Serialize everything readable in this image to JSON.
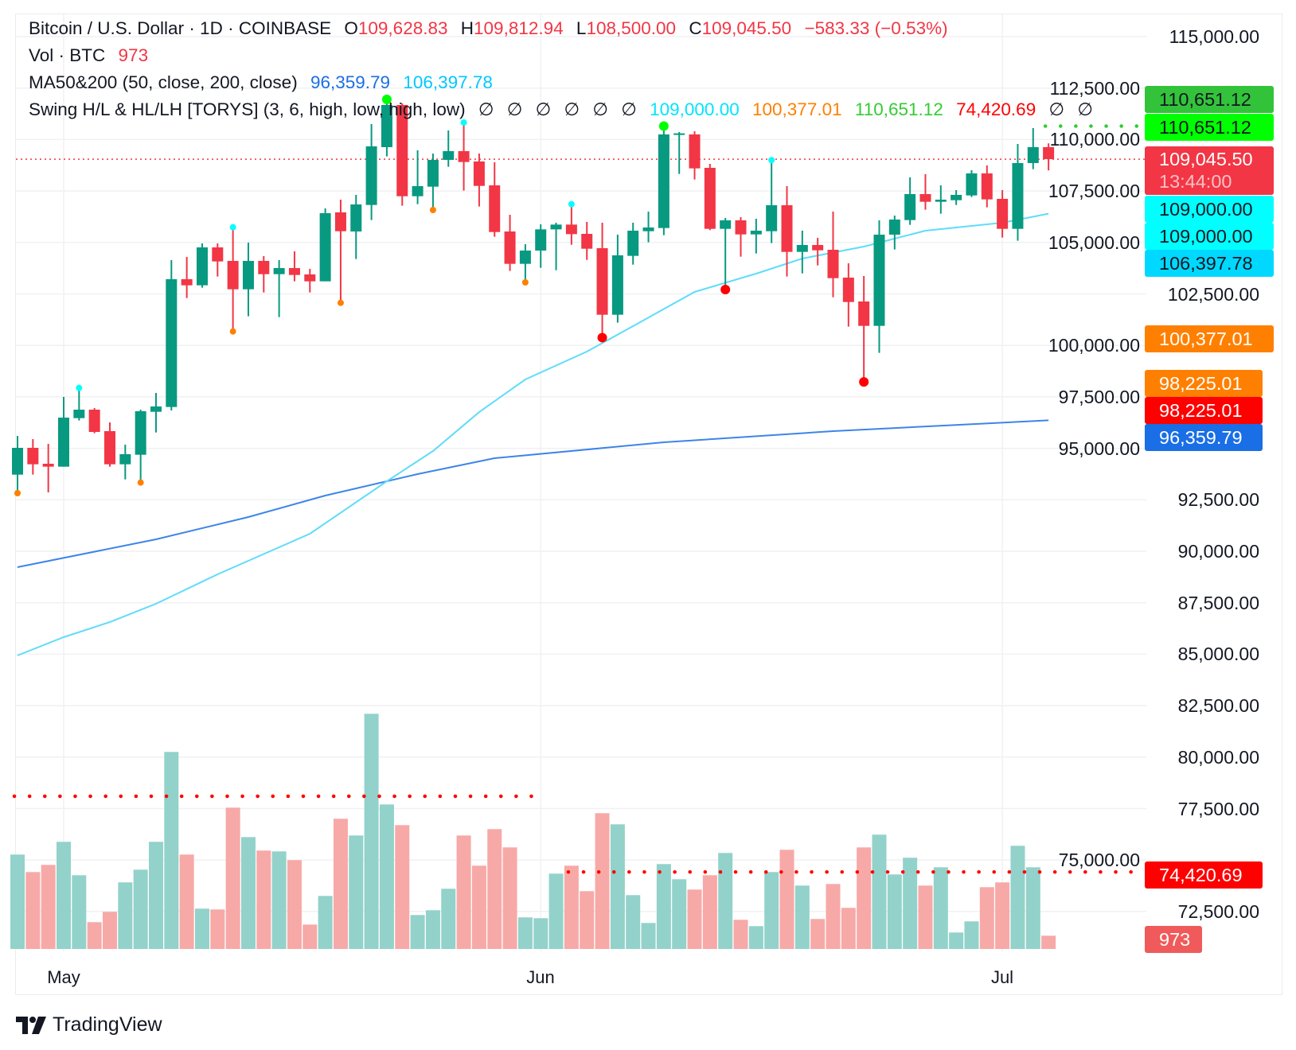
{
  "legend": {
    "symbol": "Bitcoin / U.S. Dollar · 1D · COINBASE",
    "o_label": "O",
    "o_value": "109,628.83",
    "h_label": "H",
    "h_value": "109,812.94",
    "l_label": "L",
    "l_value": "108,500.00",
    "c_label": "C",
    "c_value": "109,045.50",
    "change": "−583.33 (−0.53%)",
    "vol_label": "Vol · BTC",
    "vol_value": "973",
    "ma_label": "MA50&200 (50, close, 200, close)",
    "ma200_value": "96,359.79",
    "ma50_value": "106,397.78",
    "swing_label": "Swing H/L & HL/LH [TORYS] (3, 6, high, low, high, low)",
    "swing_empty": [
      "∅",
      "∅",
      "∅",
      "∅",
      "∅",
      "∅"
    ],
    "swing_values": [
      "109,000.00",
      "100,377.01",
      "110,651.12",
      "74,420.69"
    ],
    "swing_empty_tail": [
      "∅",
      "∅"
    ]
  },
  "price_axis": {
    "ticks": [
      "115,000.00",
      "112,500.00",
      "110,000.00",
      "107,500.00",
      "105,000.00",
      "102,500.00",
      "100,000.00",
      "97,500.00",
      "95,000.00",
      "92,500.00",
      "90,000.00",
      "87,500.00",
      "85,000.00",
      "82,500.00",
      "80,000.00",
      "77,500.00",
      "75,000.00",
      "72,500.00"
    ],
    "tags": [
      {
        "text": "110,651.12",
        "bg": "#33c33a",
        "fg": "#131722"
      },
      {
        "text": "110,651.12",
        "bg": "#00ff00",
        "fg": "#131722"
      },
      {
        "text": "109,045.50",
        "sub": "13:44:00",
        "bg": "#f23645",
        "fg": "#ffffff"
      },
      {
        "text": "109,000.00",
        "bg": "#00ffff",
        "fg": "#131722"
      },
      {
        "text": "109,000.00",
        "bg": "#00ffff",
        "fg": "#131722"
      },
      {
        "text": "106,397.78",
        "bg": "#00d8ff",
        "fg": "#131722"
      },
      {
        "text": "100,377.01",
        "bg": "#ff8000",
        "fg": "#ffffff"
      },
      {
        "text": "98,225.01",
        "bg": "#ff8000",
        "fg": "#ffffff"
      },
      {
        "text": "98,225.01",
        "bg": "#ff0000",
        "fg": "#ffffff"
      },
      {
        "text": "96,359.79",
        "bg": "#1a6ee6",
        "fg": "#ffffff"
      },
      {
        "text": "74,420.69",
        "bg": "#ff0000",
        "fg": "#ffffff"
      },
      {
        "text": "973",
        "bg": "#f05a5a",
        "fg": "#ffffff"
      }
    ]
  },
  "time_axis": {
    "labels": [
      {
        "text": "May",
        "date": "May 1"
      },
      {
        "text": "Jun",
        "date": "Jun 1"
      },
      {
        "text": "Jul",
        "date": "Jul 1"
      }
    ]
  },
  "brand": {
    "name": "TradingView"
  },
  "colors": {
    "up": "#089981",
    "down": "#f23645",
    "vol_up": "#92d2ca",
    "vol_down": "#f7a9a7",
    "ma50": "#5fdcfa",
    "ma200": "#3d85e8",
    "last_price": "#f23645",
    "swing_high": "#00ffff",
    "swing_higher_high": "#00ff00",
    "swing_low": "#ff8000",
    "swing_lower_low": "#ff0000",
    "level_red": "#ff0000",
    "level_green": "#33cc33"
  },
  "chart_data": {
    "type": "candlestick",
    "title": "Bitcoin / U.S. Dollar · 1D · COINBASE",
    "ylim": [
      71500,
      116500
    ],
    "grid": true,
    "last_price": 109045.5,
    "candles": [
      {
        "d": "Apr 28",
        "o": 93721,
        "h": 95603,
        "l": 92821,
        "c": 95023,
        "v": 6920
      },
      {
        "d": "Apr 29",
        "o": 95023,
        "h": 95448,
        "l": 93722,
        "c": 94225,
        "v": 5638
      },
      {
        "d": "Apr 30",
        "o": 94251,
        "h": 95216,
        "l": 92860,
        "c": 94109,
        "v": 6162
      },
      {
        "d": "May 1",
        "o": 94109,
        "h": 97496,
        "l": 94109,
        "c": 96492,
        "v": 7853
      },
      {
        "d": "May 2",
        "o": 96466,
        "h": 97934,
        "l": 96350,
        "c": 96878,
        "v": 5404
      },
      {
        "d": "May 3",
        "o": 96878,
        "h": 96955,
        "l": 95732,
        "c": 95796,
        "v": 1965
      },
      {
        "d": "May 4",
        "o": 95835,
        "h": 96260,
        "l": 94109,
        "c": 94225,
        "v": 2723
      },
      {
        "d": "May 5",
        "o": 94225,
        "h": 95178,
        "l": 93490,
        "c": 94714,
        "v": 4880
      },
      {
        "d": "May 6",
        "o": 94688,
        "h": 96878,
        "l": 93336,
        "c": 96801,
        "v": 5813
      },
      {
        "d": "May 7",
        "o": 96775,
        "h": 97690,
        "l": 95770,
        "c": 97033,
        "v": 7853
      },
      {
        "d": "May 8",
        "o": 97007,
        "h": 104143,
        "l": 96840,
        "c": 103215,
        "v": 14441
      },
      {
        "d": "May 9",
        "o": 103215,
        "h": 104297,
        "l": 102301,
        "c": 102919,
        "v": 6920
      },
      {
        "d": "May 10",
        "o": 102919,
        "h": 104954,
        "l": 102803,
        "c": 104761,
        "v": 2956
      },
      {
        "d": "May 11",
        "o": 104761,
        "h": 104954,
        "l": 103344,
        "c": 104078,
        "v": 2898
      },
      {
        "d": "May 12",
        "o": 104104,
        "h": 105739,
        "l": 100678,
        "c": 102726,
        "v": 10360
      },
      {
        "d": "May 13",
        "o": 102726,
        "h": 104993,
        "l": 101412,
        "c": 104104,
        "v": 8203
      },
      {
        "d": "May 14",
        "o": 104104,
        "h": 104336,
        "l": 102571,
        "c": 103460,
        "v": 7212
      },
      {
        "d": "May 15",
        "o": 103460,
        "h": 104143,
        "l": 101373,
        "c": 103756,
        "v": 7153
      },
      {
        "d": "May 16",
        "o": 103756,
        "h": 104567,
        "l": 103112,
        "c": 103421,
        "v": 6512
      },
      {
        "d": "May 17",
        "o": 103447,
        "h": 103717,
        "l": 102571,
        "c": 103112,
        "v": 1790
      },
      {
        "d": "May 18",
        "o": 103112,
        "h": 106654,
        "l": 103112,
        "c": 106422,
        "v": 3889
      },
      {
        "d": "May 19",
        "o": 106461,
        "h": 107079,
        "l": 102069,
        "c": 105546,
        "v": 9544
      },
      {
        "d": "May 20",
        "o": 105533,
        "h": 107311,
        "l": 104194,
        "c": 106847,
        "v": 8319
      },
      {
        "d": "May 21",
        "o": 106821,
        "h": 110750,
        "l": 106087,
        "c": 109668,
        "v": 17239
      },
      {
        "d": "May 22",
        "o": 109629,
        "h": 111947,
        "l": 109178,
        "c": 111677,
        "v": 10593
      },
      {
        "d": "May 23",
        "o": 111677,
        "h": 111754,
        "l": 106783,
        "c": 107246,
        "v": 9077
      },
      {
        "d": "May 24",
        "o": 107246,
        "h": 109475,
        "l": 106860,
        "c": 107736,
        "v": 2489
      },
      {
        "d": "May 25",
        "o": 107710,
        "h": 109320,
        "l": 106577,
        "c": 109011,
        "v": 2839
      },
      {
        "d": "May 26",
        "o": 109011,
        "h": 110440,
        "l": 108676,
        "c": 109436,
        "v": 4413
      },
      {
        "d": "May 27",
        "o": 109436,
        "h": 110827,
        "l": 107517,
        "c": 108908,
        "v": 8319
      },
      {
        "d": "May 28",
        "o": 108934,
        "h": 109320,
        "l": 106744,
        "c": 107748,
        "v": 6104
      },
      {
        "d": "May 29",
        "o": 107774,
        "h": 108895,
        "l": 105275,
        "c": 105507,
        "v": 8786
      },
      {
        "d": "May 30",
        "o": 105533,
        "h": 106345,
        "l": 103614,
        "c": 103962,
        "v": 7445
      },
      {
        "d": "May 31",
        "o": 103962,
        "h": 104915,
        "l": 103060,
        "c": 104606,
        "v": 2315
      },
      {
        "d": "Jun 1",
        "o": 104606,
        "h": 105881,
        "l": 103768,
        "c": 105636,
        "v": 2256
      },
      {
        "d": "Jun 2",
        "o": 105636,
        "h": 105958,
        "l": 103653,
        "c": 105868,
        "v": 5521
      },
      {
        "d": "Jun 3",
        "o": 105868,
        "h": 106860,
        "l": 104889,
        "c": 105404,
        "v": 6104
      },
      {
        "d": "Jun 4",
        "o": 105417,
        "h": 105997,
        "l": 104155,
        "c": 104696,
        "v": 4238
      },
      {
        "d": "Jun 5",
        "o": 104722,
        "h": 105958,
        "l": 100377,
        "c": 101489,
        "v": 9952
      },
      {
        "d": "Jun 6",
        "o": 101489,
        "h": 105379,
        "l": 101103,
        "c": 104374,
        "v": 9136
      },
      {
        "d": "Jun 7",
        "o": 104349,
        "h": 105958,
        "l": 103923,
        "c": 105572,
        "v": 3947
      },
      {
        "d": "Jun 8",
        "o": 105546,
        "h": 106499,
        "l": 105005,
        "c": 105727,
        "v": 1906
      },
      {
        "d": "Jun 9",
        "o": 105701,
        "h": 110651,
        "l": 105353,
        "c": 110248,
        "v": 6221
      },
      {
        "d": "Jun 10",
        "o": 110248,
        "h": 110363,
        "l": 108328,
        "c": 110300,
        "v": 5113
      },
      {
        "d": "Jun 11",
        "o": 110248,
        "h": 110402,
        "l": 108058,
        "c": 108599,
        "v": 4355
      },
      {
        "d": "Jun 12",
        "o": 108625,
        "h": 108818,
        "l": 105600,
        "c": 105662,
        "v": 5404
      },
      {
        "d": "Jun 13",
        "o": 105662,
        "h": 106190,
        "l": 102713,
        "c": 106074,
        "v": 7037
      },
      {
        "d": "Jun 14",
        "o": 106074,
        "h": 106229,
        "l": 104310,
        "c": 105392,
        "v": 2140
      },
      {
        "d": "Jun 15",
        "o": 105392,
        "h": 106152,
        "l": 104464,
        "c": 105572,
        "v": 1673
      },
      {
        "d": "Jun 16",
        "o": 105546,
        "h": 109000,
        "l": 104967,
        "c": 106808,
        "v": 5638
      },
      {
        "d": "Jun 17",
        "o": 106808,
        "h": 107736,
        "l": 103344,
        "c": 104542,
        "v": 7270
      },
      {
        "d": "Jun 18",
        "o": 104542,
        "h": 105572,
        "l": 103498,
        "c": 104877,
        "v": 4647
      },
      {
        "d": "Jun 19",
        "o": 104877,
        "h": 105224,
        "l": 103884,
        "c": 104619,
        "v": 2198
      },
      {
        "d": "Jun 20",
        "o": 104645,
        "h": 106499,
        "l": 102339,
        "c": 103266,
        "v": 4763
      },
      {
        "d": "Jun 21",
        "o": 103292,
        "h": 103988,
        "l": 100910,
        "c": 102107,
        "v": 3014
      },
      {
        "d": "Jun 22",
        "o": 102133,
        "h": 103370,
        "l": 98225,
        "c": 100948,
        "v": 7445
      },
      {
        "d": "Jun 23",
        "o": 100948,
        "h": 106074,
        "l": 99634,
        "c": 105379,
        "v": 8378
      },
      {
        "d": "Jun 24",
        "o": 105379,
        "h": 106306,
        "l": 104658,
        "c": 106113,
        "v": 5463
      },
      {
        "d": "Jun 25",
        "o": 106087,
        "h": 108161,
        "l": 105855,
        "c": 107350,
        "v": 6687
      },
      {
        "d": "Jun 26",
        "o": 107350,
        "h": 108315,
        "l": 106590,
        "c": 106976,
        "v": 4647
      },
      {
        "d": "Jun 27",
        "o": 106976,
        "h": 107774,
        "l": 106397,
        "c": 107079,
        "v": 5987
      },
      {
        "d": "Jun 28",
        "o": 107053,
        "h": 107543,
        "l": 106822,
        "c": 107311,
        "v": 1207
      },
      {
        "d": "Jun 29",
        "o": 107285,
        "h": 108508,
        "l": 107208,
        "c": 108354,
        "v": 2023
      },
      {
        "d": "Jun 30",
        "o": 108354,
        "h": 108740,
        "l": 106706,
        "c": 107092,
        "v": 4530
      },
      {
        "d": "Jul 1",
        "o": 107118,
        "h": 107543,
        "l": 105237,
        "c": 105662,
        "v": 4880
      },
      {
        "d": "Jul 2",
        "o": 105662,
        "h": 109784,
        "l": 105083,
        "c": 108856,
        "v": 7562
      },
      {
        "d": "Jul 3",
        "o": 108856,
        "h": 110557,
        "l": 108560,
        "c": 109629,
        "v": 5987
      },
      {
        "d": "Jul 4",
        "o": 109628.83,
        "h": 109812.94,
        "l": 108500.0,
        "c": 109045.5,
        "v": 973
      }
    ],
    "ma50": [
      {
        "d": "Apr 28",
        "v": 84938
      },
      {
        "d": "May 1",
        "v": 85827
      },
      {
        "d": "May 4",
        "v": 86561
      },
      {
        "d": "May 7",
        "v": 87450
      },
      {
        "d": "May 11",
        "v": 88880
      },
      {
        "d": "May 17",
        "v": 90850
      },
      {
        "d": "May 22",
        "v": 93400
      },
      {
        "d": "May 25",
        "v": 94868
      },
      {
        "d": "May 28",
        "v": 96760
      },
      {
        "d": "May 31",
        "v": 98346
      },
      {
        "d": "Jun 4",
        "v": 99699
      },
      {
        "d": "Jun 7",
        "v": 100935
      },
      {
        "d": "Jun 11",
        "v": 102597
      },
      {
        "d": "Jun 15",
        "v": 103485
      },
      {
        "d": "Jun 18",
        "v": 104219
      },
      {
        "d": "Jun 22",
        "v": 104799
      },
      {
        "d": "Jun 26",
        "v": 105572
      },
      {
        "d": "Jul 1",
        "v": 105958
      },
      {
        "d": "Jul 4",
        "v": 106397.78
      }
    ],
    "ma200": [
      {
        "d": "Apr 28",
        "v": 89227
      },
      {
        "d": "May 7",
        "v": 90579
      },
      {
        "d": "May 13",
        "v": 91661
      },
      {
        "d": "May 18",
        "v": 92705
      },
      {
        "d": "May 24",
        "v": 93748
      },
      {
        "d": "May 29",
        "v": 94520
      },
      {
        "d": "Jun 9",
        "v": 95293
      },
      {
        "d": "Jun 20",
        "v": 95834
      },
      {
        "d": "Jul 4",
        "v": 96359.79
      }
    ],
    "swing_points": [
      {
        "d": "Apr 28",
        "at": "low",
        "kind": "low"
      },
      {
        "d": "May 2",
        "at": "high",
        "kind": "high"
      },
      {
        "d": "May 6",
        "at": "low",
        "kind": "low"
      },
      {
        "d": "May 12",
        "at": "high",
        "kind": "high"
      },
      {
        "d": "May 12",
        "at": "low",
        "kind": "low"
      },
      {
        "d": "May 19",
        "at": "low",
        "kind": "low"
      },
      {
        "d": "May 22",
        "at": "high",
        "kind": "higher_high"
      },
      {
        "d": "May 25",
        "at": "low",
        "kind": "low"
      },
      {
        "d": "May 27",
        "at": "high",
        "kind": "high"
      },
      {
        "d": "May 31",
        "at": "low",
        "kind": "low"
      },
      {
        "d": "Jun 3",
        "at": "high",
        "kind": "high"
      },
      {
        "d": "Jun 5",
        "at": "low",
        "kind": "lower_low"
      },
      {
        "d": "Jun 9",
        "at": "high",
        "kind": "higher_high"
      },
      {
        "d": "Jun 13",
        "at": "low",
        "kind": "lower_low"
      },
      {
        "d": "Jun 16",
        "at": "high",
        "kind": "high"
      },
      {
        "d": "Jun 22",
        "at": "low",
        "kind": "lower_low"
      }
    ],
    "levels": [
      {
        "price": 78100,
        "from": "Apr 28",
        "to": "Jun 1",
        "color": "level_red"
      },
      {
        "price": 74420.69,
        "from": "Jun 3",
        "to": "end",
        "color": "level_red"
      },
      {
        "price": 110651.12,
        "from": "Jul 4",
        "to": "end",
        "color": "level_green"
      }
    ]
  }
}
